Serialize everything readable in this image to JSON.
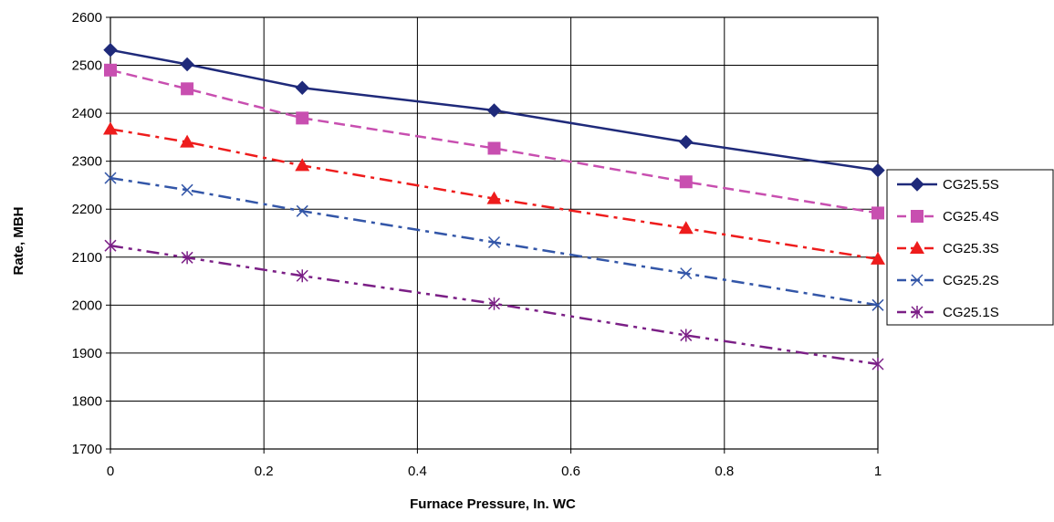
{
  "chart_data": {
    "type": "line",
    "title": "",
    "xlabel": "Furnace Pressure, In. WC",
    "ylabel": "Rate, MBH",
    "xlim": [
      0,
      1
    ],
    "ylim": [
      1700,
      2600
    ],
    "x_ticks": [
      "0",
      "0.2",
      "0.4",
      "0.6",
      "0.8",
      "1"
    ],
    "y_ticks": [
      "1700",
      "1800",
      "1900",
      "2000",
      "2100",
      "2200",
      "2300",
      "2400",
      "2500",
      "2600"
    ],
    "grid": true,
    "legend_position": "right",
    "x": [
      0,
      0.1,
      0.25,
      0.5,
      0.75,
      1
    ],
    "series": [
      {
        "name": "CG25.5S",
        "values": [
          2532,
          2502,
          2453,
          2406,
          2340,
          2281
        ],
        "color": "#1f2a7a",
        "marker": "diamond",
        "line_style": "solid"
      },
      {
        "name": "CG25.4S",
        "values": [
          2490,
          2451,
          2390,
          2327,
          2257,
          2192
        ],
        "color": "#c84fb0",
        "marker": "square",
        "line_style": "dash"
      },
      {
        "name": "CG25.3S",
        "values": [
          2367,
          2340,
          2291,
          2222,
          2160,
          2096
        ],
        "color": "#ee1c1c",
        "marker": "triangle",
        "line_style": "dashdot"
      },
      {
        "name": "CG25.2S",
        "values": [
          2265,
          2240,
          2196,
          2131,
          2066,
          2000
        ],
        "color": "#3356a8",
        "marker": "x",
        "line_style": "dashdot"
      },
      {
        "name": "CG25.1S",
        "values": [
          2124,
          2099,
          2061,
          2003,
          1937,
          1877
        ],
        "color": "#7b1f86",
        "marker": "star",
        "line_style": "dashdotdot"
      }
    ]
  }
}
